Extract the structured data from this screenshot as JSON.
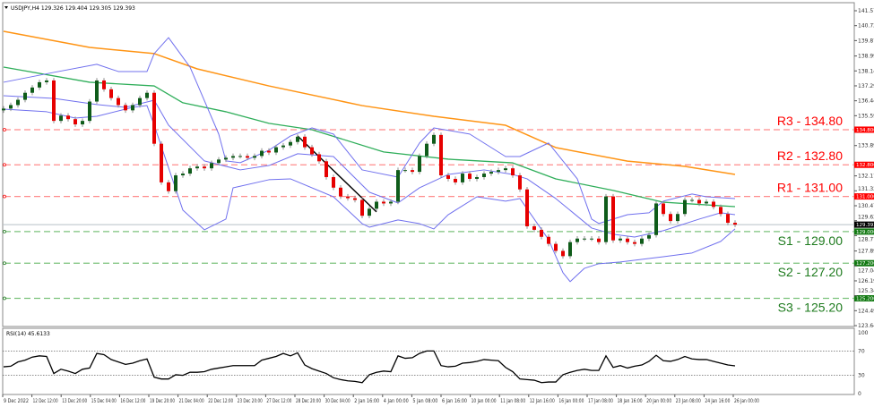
{
  "chart_data": {
    "type": "candlestick",
    "title": "USDJPY,H4 129.326 129.404 129.305 129.393",
    "symbol": "USDJPY,H4",
    "last_price_label": "129.393",
    "ylim": [
      123.645,
      141.57
    ],
    "y_ticks": [
      "141.570",
      "140.720",
      "139.870",
      "138.995",
      "138.145",
      "137.295",
      "136.445",
      "135.595",
      "133.895",
      "132.170",
      "131.320",
      "130.470",
      "129.620",
      "128.770",
      "127.895",
      "127.045",
      "126.195",
      "125.345",
      "124.495",
      "123.645"
    ],
    "x_ticks": [
      "9 Dec 2022",
      "12 Dec 12:00",
      "13 Dec 20:00",
      "15 Dec 04:00",
      "16 Dec 12:00",
      "19 Dec 20:00",
      "21 Dec 04:00",
      "22 Dec 12:00",
      "23 Dec 20:00",
      "27 Dec 12:00",
      "28 Dec 20:00",
      "30 Dec 04:00",
      "2 Jan 16:00",
      "4 Jan 00:00",
      "5 Jan 08:00",
      "6 Jan 16:00",
      "10 Jan 00:00",
      "11 Jan 08:00",
      "12 Jan 16:00",
      "16 Jan 00:00",
      "17 Jan 08:00",
      "18 Jan 16:00",
      "20 Jan 00:00",
      "23 Jan 08:00",
      "24 Jan 16:00",
      "26 Jan 00:00"
    ],
    "closes": [
      136.0,
      136.2,
      136.5,
      136.9,
      137.2,
      137.5,
      137.6,
      135.3,
      135.6,
      135.4,
      135.1,
      135.3,
      136.4,
      137.6,
      137.1,
      136.6,
      136.2,
      135.9,
      136.2,
      136.6,
      136.9,
      134.0,
      131.8,
      131.3,
      132.2,
      132.3,
      132.6,
      132.7,
      132.6,
      132.9,
      133.1,
      133.2,
      133.3,
      133.3,
      133.2,
      133.3,
      133.6,
      133.5,
      133.8,
      133.9,
      134.1,
      134.4,
      133.8,
      133.4,
      133.0,
      132.1,
      131.5,
      131.0,
      130.9,
      130.8,
      129.9,
      130.3,
      130.7,
      130.6,
      130.7,
      132.5,
      132.5,
      132.4,
      133.3,
      134.0,
      134.5,
      132.2,
      132.0,
      131.8,
      132.3,
      132.0,
      132.1,
      132.3,
      132.4,
      132.5,
      132.6,
      132.2,
      131.4,
      129.3,
      129.1,
      128.7,
      128.3,
      127.9,
      127.6,
      128.4,
      128.6,
      128.6,
      128.6,
      128.4,
      131.0,
      128.5,
      128.6,
      128.4,
      128.3,
      128.6,
      128.8,
      130.6,
      130.0,
      129.6,
      130.0,
      130.8,
      130.8,
      130.6,
      130.7,
      130.4,
      130.0,
      129.5,
      129.393
    ],
    "first_open": 135.9,
    "moving_average_slow": [
      [
        0,
        140.4
      ],
      [
        12,
        139.48
      ],
      [
        21,
        139.13
      ],
      [
        27,
        138.26
      ],
      [
        37,
        137.29
      ],
      [
        50,
        136.17
      ],
      [
        60,
        135.56
      ],
      [
        70,
        135.05
      ],
      [
        77,
        133.78
      ],
      [
        87,
        133.01
      ],
      [
        95,
        132.71
      ],
      [
        102,
        132.25
      ]
    ],
    "moving_average_fast": [
      [
        0,
        138.36
      ],
      [
        12,
        137.5
      ],
      [
        21,
        137.29
      ],
      [
        25,
        136.33
      ],
      [
        31,
        135.82
      ],
      [
        37,
        135.16
      ],
      [
        43,
        134.8
      ],
      [
        53,
        133.53
      ],
      [
        62,
        133.12
      ],
      [
        71,
        132.91
      ],
      [
        77,
        132.0
      ],
      [
        85,
        131.34
      ],
      [
        92,
        130.67
      ],
      [
        102,
        130.42
      ]
    ],
    "bollinger_upper": [
      [
        0,
        137.5
      ],
      [
        7,
        138.06
      ],
      [
        13,
        138.52
      ],
      [
        16,
        138.11
      ],
      [
        20,
        138.11
      ],
      [
        21,
        139.13
      ],
      [
        23,
        140.04
      ],
      [
        26,
        138.36
      ],
      [
        30,
        134.55
      ],
      [
        31,
        133.02
      ],
      [
        33,
        132.92
      ],
      [
        37,
        133.63
      ],
      [
        40,
        134.44
      ],
      [
        43,
        134.9
      ],
      [
        46,
        134.55
      ],
      [
        50,
        132.51
      ],
      [
        55,
        132.1
      ],
      [
        58,
        134.04
      ],
      [
        60,
        134.9
      ],
      [
        65,
        134.55
      ],
      [
        70,
        133.27
      ],
      [
        72,
        133.27
      ],
      [
        76,
        134.04
      ],
      [
        80,
        132.0
      ],
      [
        82,
        129.71
      ],
      [
        83,
        129.46
      ],
      [
        87,
        129.96
      ],
      [
        90,
        130.07
      ],
      [
        92,
        130.73
      ],
      [
        96,
        131.14
      ],
      [
        98,
        130.98
      ],
      [
        102,
        130.88
      ]
    ],
    "bollinger_middle": [
      [
        0,
        136.73
      ],
      [
        7,
        136.58
      ],
      [
        13,
        136.23
      ],
      [
        17,
        136.07
      ],
      [
        21,
        136.48
      ],
      [
        23,
        135.06
      ],
      [
        28,
        133.02
      ],
      [
        33,
        132.51
      ],
      [
        37,
        132.76
      ],
      [
        41,
        133.43
      ],
      [
        46,
        133.27
      ],
      [
        51,
        131.24
      ],
      [
        55,
        130.63
      ],
      [
        58,
        131.49
      ],
      [
        62,
        132.25
      ],
      [
        67,
        132.51
      ],
      [
        71,
        132.25
      ],
      [
        73,
        132.0
      ],
      [
        77,
        130.88
      ],
      [
        82,
        129.2
      ],
      [
        85,
        128.85
      ],
      [
        88,
        128.69
      ],
      [
        92,
        129.05
      ],
      [
        97,
        129.71
      ],
      [
        100,
        130.07
      ],
      [
        102,
        129.96
      ]
    ],
    "bollinger_lower": [
      [
        0,
        135.97
      ],
      [
        6,
        135.82
      ],
      [
        10,
        135.46
      ],
      [
        13,
        135.56
      ],
      [
        18,
        136.07
      ],
      [
        20,
        136.17
      ],
      [
        21,
        135.06
      ],
      [
        25,
        130.22
      ],
      [
        28,
        129.1
      ],
      [
        31,
        129.71
      ],
      [
        32,
        131.49
      ],
      [
        37,
        131.95
      ],
      [
        40,
        132.0
      ],
      [
        46,
        130.98
      ],
      [
        50,
        129.45
      ],
      [
        51,
        129.25
      ],
      [
        55,
        129.66
      ],
      [
        58,
        129.45
      ],
      [
        60,
        129.15
      ],
      [
        62,
        129.96
      ],
      [
        66,
        130.98
      ],
      [
        70,
        130.73
      ],
      [
        72,
        130.88
      ],
      [
        76,
        128.54
      ],
      [
        78,
        126.66
      ],
      [
        79,
        126.15
      ],
      [
        81,
        126.91
      ],
      [
        83,
        127.17
      ],
      [
        86,
        127.27
      ],
      [
        92,
        127.57
      ],
      [
        96,
        127.78
      ],
      [
        100,
        128.44
      ],
      [
        102,
        129.15
      ]
    ],
    "trendline": [
      [
        41,
        134.44
      ],
      [
        52,
        130.12
      ]
    ],
    "levels": [
      {
        "label": "R3 - 134.80",
        "value": 134.8,
        "badge": "134.800",
        "color": "#ff0000",
        "kind": "resistance"
      },
      {
        "label": "R2 - 132.80",
        "value": 132.8,
        "badge": "132.800",
        "color": "#ff0000",
        "kind": "resistance"
      },
      {
        "label": "R1 - 131.00",
        "value": 131.0,
        "badge": "131.000",
        "color": "#ff0000",
        "kind": "resistance"
      },
      {
        "label": "S1 - 129.00",
        "value": 129.0,
        "badge": "129.000",
        "color": "#1e7b1e",
        "kind": "support"
      },
      {
        "label": "S2 - 127.20",
        "value": 127.2,
        "badge": "127.200",
        "color": "#1e7b1e",
        "kind": "support"
      },
      {
        "label": "S3 - 125.20",
        "value": 125.2,
        "badge": "125.200",
        "color": "#1e7b1e",
        "kind": "support"
      }
    ],
    "rsi": {
      "title": "RSI(14) 45.6133",
      "ylim": [
        0,
        100
      ],
      "levels": [
        70,
        30
      ],
      "y_ticks": [
        "100",
        "70",
        "30",
        "0"
      ],
      "values": [
        44,
        45,
        52,
        55,
        60,
        62,
        61,
        33,
        40,
        37,
        33,
        40,
        42,
        66,
        64,
        56,
        52,
        48,
        50,
        54,
        57,
        27,
        24,
        24,
        31,
        30,
        35,
        35,
        36,
        40,
        42,
        44,
        46,
        46,
        46,
        46,
        55,
        58,
        61,
        66,
        62,
        67,
        47,
        41,
        37,
        33,
        26,
        23,
        21,
        20,
        18,
        31,
        35,
        37,
        36,
        62,
        58,
        59,
        66,
        70,
        70,
        46,
        44,
        45,
        50,
        51,
        53,
        56,
        55,
        54,
        43,
        36,
        24,
        23,
        22,
        18,
        19,
        19,
        31,
        35,
        38,
        40,
        38,
        38,
        62,
        43,
        46,
        42,
        45,
        47,
        53,
        63,
        54,
        53,
        56,
        61,
        57,
        56,
        56,
        53,
        50,
        47,
        45.6133
      ]
    },
    "colors": {
      "bull": "#0f5c1a",
      "bear": "#e60000",
      "wick": "#8c8c8c",
      "bollinger": "#7070ee",
      "ma_fast": "#2fae5a",
      "ma_slow": "#ff9414",
      "trendline": "#000000",
      "last_price": "#b8c0c8"
    }
  }
}
